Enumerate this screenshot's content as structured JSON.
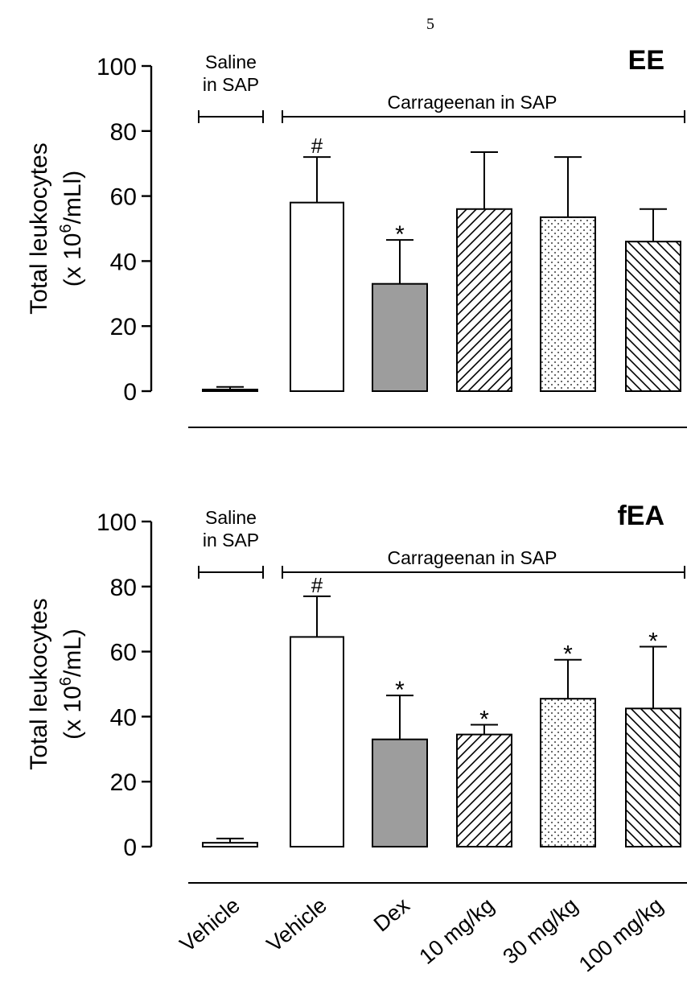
{
  "page_number": "5",
  "x_tick_labels": [
    "Vehicle",
    "Vehicle",
    "Dex",
    "10 mg/kg",
    "30 mg/kg",
    "100 mg/kg"
  ],
  "chart_data": [
    {
      "type": "bar",
      "panel_label": "EE",
      "ylabel_line1": "Total leukocytes",
      "ylabel_line2_prefix": "(x 10",
      "ylabel_line2_sup": "6",
      "ylabel_line2_suffix": "/mLl)",
      "ylim": [
        0,
        100
      ],
      "yticks": [
        "0",
        "20",
        "40",
        "60",
        "80",
        "100"
      ],
      "categories": [
        "Vehicle",
        "Vehicle",
        "Dex",
        "10 mg/kg",
        "30 mg/kg",
        "100 mg/kg"
      ],
      "values": [
        0.5,
        58,
        33,
        56,
        53.5,
        46
      ],
      "errors": [
        0.8,
        14,
        13.5,
        17.5,
        18.5,
        10
      ],
      "significance": [
        "",
        "#",
        "*",
        "",
        "",
        ""
      ],
      "fills": [
        "white",
        "white",
        "gray",
        "diag-right",
        "dots",
        "diag-left"
      ],
      "group_labels": {
        "saline_line1": "Saline",
        "saline_line2": "in SAP",
        "carrageenan": "Carrageenan in SAP"
      },
      "colors": {
        "dex_fill": "#9d9d9d",
        "ink": "#000000"
      }
    },
    {
      "type": "bar",
      "panel_label": "fEA",
      "ylabel_line1": "Total leukocytes",
      "ylabel_line2_prefix": "(x 10",
      "ylabel_line2_sup": "6",
      "ylabel_line2_suffix": "/mL)",
      "ylim": [
        0,
        100
      ],
      "yticks": [
        "0",
        "20",
        "40",
        "60",
        "80",
        "100"
      ],
      "categories": [
        "Vehicle",
        "Vehicle",
        "Dex",
        "10 mg/kg",
        "30 mg/kg",
        "100 mg/kg"
      ],
      "values": [
        1.2,
        64.5,
        33,
        34.5,
        45.5,
        42.5
      ],
      "errors": [
        1.3,
        12.5,
        13.5,
        3,
        12,
        19
      ],
      "significance": [
        "",
        "#",
        "*",
        "*",
        "*",
        "*"
      ],
      "fills": [
        "white",
        "white",
        "gray",
        "diag-right",
        "dots",
        "diag-left"
      ],
      "group_labels": {
        "saline_line1": "Saline",
        "saline_line2": "in SAP",
        "carrageenan": "Carrageenan in SAP"
      },
      "colors": {
        "dex_fill": "#9d9d9d",
        "ink": "#000000"
      }
    }
  ]
}
